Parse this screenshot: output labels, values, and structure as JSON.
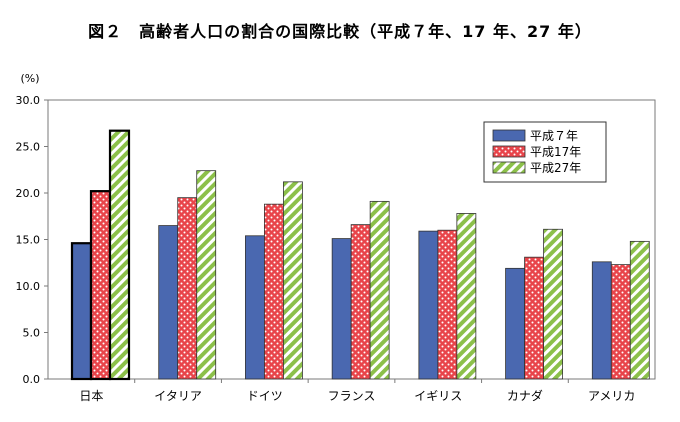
{
  "chart_data": {
    "type": "bar",
    "title": "図２　高齢者人口の割合の国際比較（平成７年、17 年、27 年）",
    "ylabel": "(%)",
    "xlabel": "",
    "ylim": [
      0,
      30
    ],
    "yticks": [
      0,
      5,
      10,
      15,
      20,
      25,
      30
    ],
    "ytick_labels": [
      "0.0",
      "5.0",
      "10.0",
      "15.0",
      "20.0",
      "25.0",
      "30.0"
    ],
    "grid": false,
    "legend_position": "top-right",
    "categories": [
      "日本",
      "イタリア",
      "ドイツ",
      "フランス",
      "イギリス",
      "カナダ",
      "アメリカ"
    ],
    "series": [
      {
        "name": "平成７年",
        "values": [
          14.6,
          16.5,
          15.4,
          15.1,
          15.9,
          11.9,
          12.6
        ]
      },
      {
        "name": "平成17年",
        "values": [
          20.2,
          19.5,
          18.8,
          16.6,
          16.0,
          13.1,
          12.3
        ]
      },
      {
        "name": "平成27年",
        "values": [
          26.7,
          22.4,
          21.2,
          19.1,
          17.8,
          16.1,
          14.8
        ]
      }
    ],
    "highlight_category": "日本"
  },
  "colors": {
    "series1": "#4a68b0",
    "series2": "#e8444a",
    "series3": "#8cc04a"
  }
}
